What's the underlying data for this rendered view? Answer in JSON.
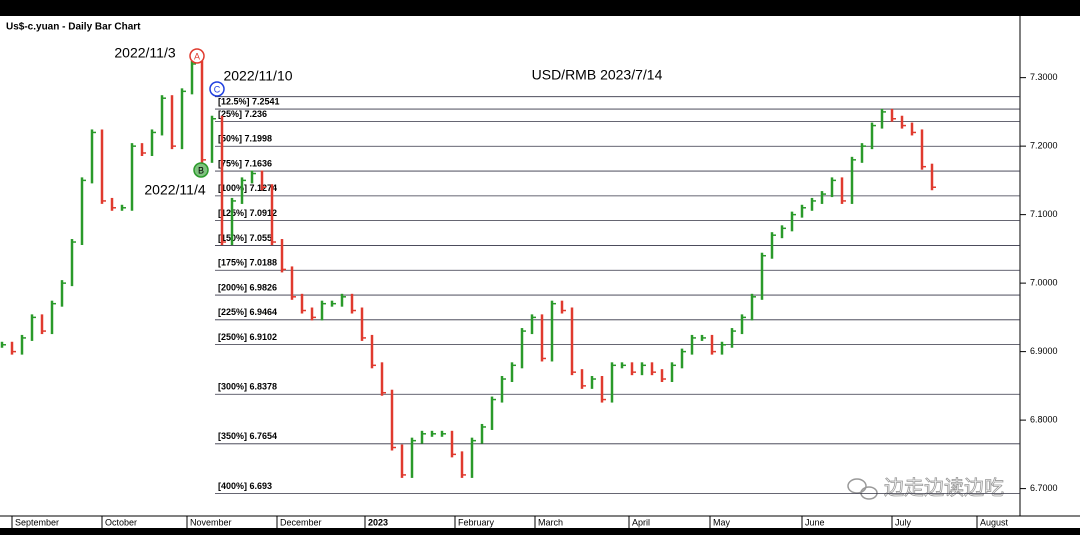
{
  "chart_data": {
    "type": "bar-chart",
    "title": "Us$-c.yuan - Daily Bar Chart",
    "subtitle": "USD/RMB 2023/7/14",
    "up_color": "#2a9a2a",
    "down_color": "#e03a2e",
    "ylim": [
      6.66,
      7.39
    ],
    "yticks": [
      {
        "value": 6.7,
        "label": "6.7000"
      },
      {
        "value": 6.8,
        "label": "6.8000"
      },
      {
        "value": 6.9,
        "label": "6.9000"
      },
      {
        "value": 7.0,
        "label": "7.0000"
      },
      {
        "value": 7.1,
        "label": "7.1000"
      },
      {
        "value": 7.2,
        "label": "7.2000"
      },
      {
        "value": 7.3,
        "label": "7.3000"
      }
    ],
    "xticks": [
      "September",
      "October",
      "November",
      "December",
      "2023",
      "February",
      "March",
      "April",
      "May",
      "June",
      "July",
      "August"
    ],
    "values": [
      6.91,
      6.9,
      6.92,
      6.95,
      6.93,
      6.97,
      7.0,
      7.06,
      7.15,
      7.22,
      7.12,
      7.11,
      7.11,
      7.2,
      7.19,
      7.22,
      7.27,
      7.2,
      7.28,
      7.32,
      7.18,
      7.24,
      7.06,
      7.12,
      7.15,
      7.16,
      7.14,
      7.06,
      7.02,
      6.98,
      6.96,
      6.95,
      6.97,
      6.97,
      6.98,
      6.96,
      6.92,
      6.88,
      6.84,
      6.76,
      6.72,
      6.77,
      6.78,
      6.78,
      6.78,
      6.75,
      6.72,
      6.77,
      6.79,
      6.83,
      6.86,
      6.88,
      6.93,
      6.95,
      6.89,
      6.97,
      6.96,
      6.87,
      6.85,
      6.86,
      6.83,
      6.88,
      6.88,
      6.87,
      6.88,
      6.87,
      6.86,
      6.88,
      6.9,
      6.92,
      6.92,
      6.9,
      6.91,
      6.93,
      6.95,
      6.98,
      7.04,
      7.07,
      7.08,
      7.1,
      7.11,
      7.12,
      7.13,
      7.15,
      7.12,
      7.18,
      7.2,
      7.23,
      7.25,
      7.24,
      7.23,
      7.22,
      7.17,
      7.14
    ],
    "levels": [
      {
        "value": 7.2722,
        "label": null
      },
      {
        "value": 7.2541,
        "label": "[12.5%] 7.2541"
      },
      {
        "value": 7.236,
        "label": "[25%] 7.236"
      },
      {
        "value": 7.1998,
        "label": "[50%] 7.1998"
      },
      {
        "value": 7.1636,
        "label": "[75%] 7.1636"
      },
      {
        "value": 7.1274,
        "label": "[100%] 7.1274"
      },
      {
        "value": 7.0912,
        "label": "[125%] 7.0912"
      },
      {
        "value": 7.055,
        "label": "[150%] 7.055"
      },
      {
        "value": 7.0188,
        "label": "[175%] 7.0188"
      },
      {
        "value": 6.9826,
        "label": "[200%] 6.9826"
      },
      {
        "value": 6.9464,
        "label": "[225%] 6.9464"
      },
      {
        "value": 6.9102,
        "label": "[250%] 6.9102"
      },
      {
        "value": 6.8378,
        "label": "[300%] 6.8378"
      },
      {
        "value": 6.7654,
        "label": "[350%] 6.7654"
      },
      {
        "value": 6.693,
        "label": "[400%] 6.693"
      }
    ],
    "annotations": [
      {
        "text": "2022/11/3",
        "marker": "A",
        "color": "#e03a2e"
      },
      {
        "text": "2022/11/4",
        "marker": "B",
        "color": "#2a9a2a"
      },
      {
        "text": "2022/11/10",
        "marker": "C",
        "color": "#2040e0"
      }
    ],
    "watermark": "边走边读边吃"
  }
}
